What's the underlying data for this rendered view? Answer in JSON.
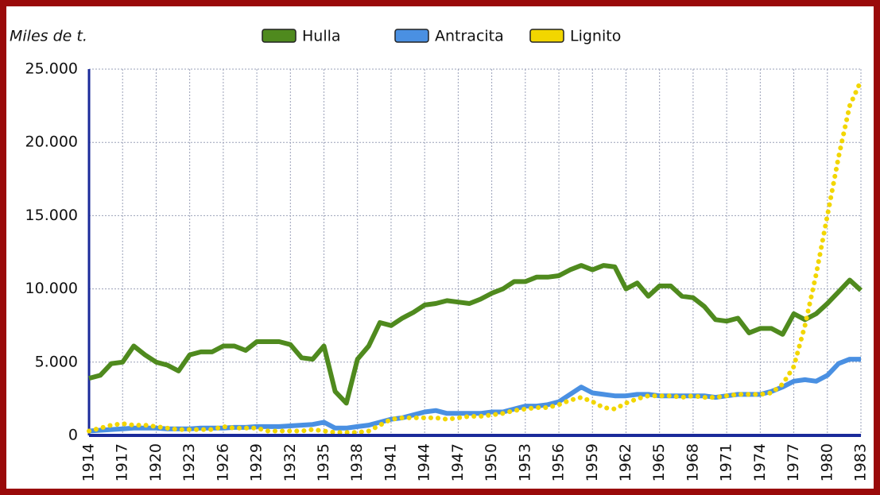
{
  "chart_data": {
    "type": "line",
    "y_label": "Miles de t.",
    "x": [
      1914,
      1915,
      1916,
      1917,
      1918,
      1919,
      1920,
      1921,
      1922,
      1923,
      1924,
      1925,
      1926,
      1927,
      1928,
      1929,
      1930,
      1931,
      1932,
      1933,
      1934,
      1935,
      1936,
      1937,
      1938,
      1939,
      1940,
      1941,
      1942,
      1943,
      1944,
      1945,
      1946,
      1947,
      1948,
      1949,
      1950,
      1951,
      1952,
      1953,
      1954,
      1955,
      1956,
      1957,
      1958,
      1959,
      1960,
      1961,
      1962,
      1963,
      1964,
      1965,
      1966,
      1967,
      1968,
      1969,
      1970,
      1971,
      1972,
      1973,
      1974,
      1975,
      1976,
      1977,
      1978,
      1979,
      1980,
      1981,
      1982,
      1983
    ],
    "series": [
      {
        "name": "Hulla",
        "color": "#4f8a1e",
        "values": [
          3900,
          4100,
          4900,
          5000,
          6100,
          5500,
          5000,
          4800,
          4400,
          5500,
          5700,
          5700,
          6100,
          6100,
          5800,
          6400,
          6400,
          6400,
          6200,
          5300,
          5200,
          6100,
          3000,
          2200,
          5200,
          6100,
          7700,
          7500,
          8000,
          8400,
          8900,
          9000,
          9200,
          9100,
          9000,
          9300,
          9700,
          10000,
          10500,
          10500,
          10800,
          10800,
          10900,
          11300,
          11600,
          11300,
          11600,
          11500,
          10000,
          10400,
          9500,
          10200,
          10200,
          9500,
          9400,
          8800,
          7900,
          7800,
          8000,
          7000,
          7300,
          7300,
          6900,
          8300,
          7900,
          8300,
          9000,
          9800,
          10600,
          9900
        ]
      },
      {
        "name": "Antracita",
        "color": "#4a90e2",
        "values": [
          300,
          350,
          400,
          450,
          500,
          500,
          500,
          450,
          450,
          450,
          500,
          500,
          500,
          550,
          550,
          600,
          600,
          600,
          650,
          700,
          750,
          900,
          500,
          500,
          600,
          700,
          900,
          1100,
          1200,
          1400,
          1600,
          1700,
          1500,
          1500,
          1500,
          1500,
          1600,
          1600,
          1800,
          2000,
          2000,
          2100,
          2300,
          2800,
          3300,
          2900,
          2800,
          2700,
          2700,
          2800,
          2800,
          2700,
          2700,
          2700,
          2700,
          2700,
          2600,
          2700,
          2800,
          2800,
          2800,
          3000,
          3300,
          3700,
          3800,
          3700,
          4100,
          4900,
          5200,
          5200
        ]
      },
      {
        "name": "Lignito",
        "color": "#f2d600",
        "dashed": true,
        "values": [
          300,
          500,
          700,
          800,
          700,
          700,
          600,
          500,
          400,
          400,
          400,
          400,
          600,
          500,
          500,
          500,
          300,
          300,
          300,
          300,
          400,
          300,
          200,
          200,
          200,
          300,
          700,
          1100,
          1200,
          1200,
          1200,
          1200,
          1100,
          1200,
          1300,
          1300,
          1400,
          1500,
          1700,
          1800,
          1900,
          1900,
          2100,
          2400,
          2600,
          2300,
          1900,
          1800,
          2200,
          2500,
          2700,
          2700,
          2700,
          2600,
          2700,
          2600,
          2600,
          2700,
          2800,
          2800,
          2800,
          2900,
          3500,
          4700,
          7500,
          11000,
          15000,
          19000,
          22500,
          24200
        ]
      }
    ],
    "xlim": [
      1914,
      1983
    ],
    "xticks": [
      1914,
      1917,
      1920,
      1923,
      1926,
      1929,
      1932,
      1935,
      1938,
      1941,
      1944,
      1947,
      1950,
      1953,
      1956,
      1959,
      1962,
      1965,
      1968,
      1971,
      1974,
      1977,
      1980,
      1983
    ],
    "ylim": [
      0,
      25000
    ],
    "yticks": [
      0,
      {
        "value": 5000,
        "label": "5.000"
      },
      {
        "value": 10000,
        "label": "10.000"
      },
      {
        "value": 15000,
        "label": "15.000"
      },
      {
        "value": 20000,
        "label": "20.000"
      },
      {
        "value": 25000,
        "label": "25.000"
      }
    ],
    "grid": true
  }
}
